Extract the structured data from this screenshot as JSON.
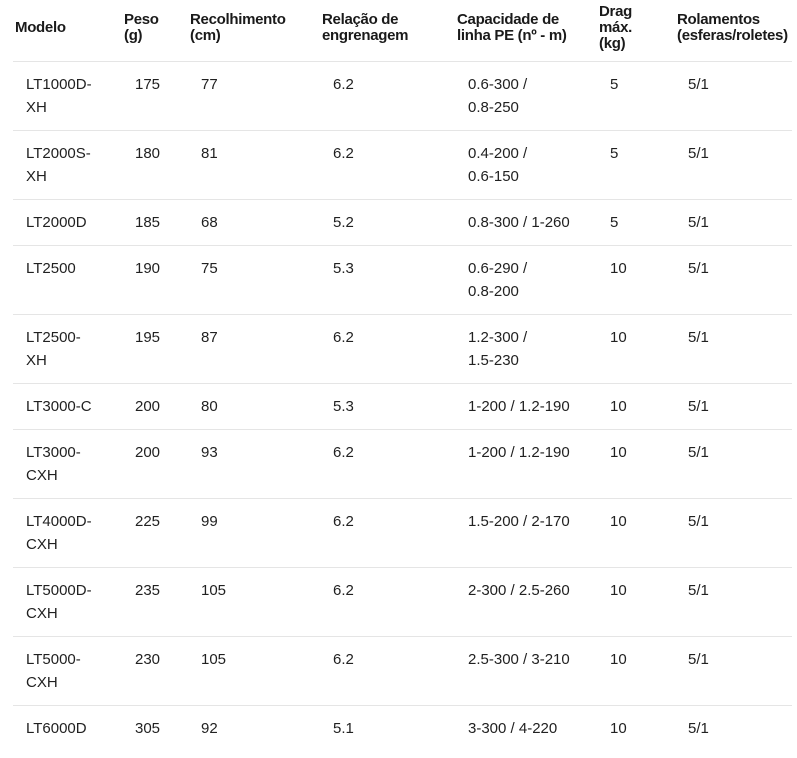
{
  "table": {
    "columns": [
      {
        "id": "modelo",
        "lines": [
          "Modelo"
        ]
      },
      {
        "id": "peso",
        "lines": [
          "Peso",
          "(g)"
        ]
      },
      {
        "id": "recolhimento",
        "lines": [
          "Recolhimento",
          "(cm)"
        ]
      },
      {
        "id": "relacao",
        "lines": [
          "Relação de",
          "engrenagem"
        ]
      },
      {
        "id": "capacidade",
        "lines": [
          "Capacidade de",
          "linha PE (nº - m)"
        ]
      },
      {
        "id": "drag",
        "lines": [
          "Drag",
          "máx.",
          "(kg)"
        ]
      },
      {
        "id": "rolamentos",
        "lines": [
          "Rolamentos",
          "(esferas/roletes)"
        ]
      }
    ],
    "rows": [
      {
        "cells": [
          [
            "LT1000D-",
            "XH"
          ],
          [
            "175"
          ],
          [
            "77"
          ],
          [
            "6.2"
          ],
          [
            "0.6-300 /",
            "0.8-250"
          ],
          [
            "5"
          ],
          [
            "5/1"
          ]
        ]
      },
      {
        "cells": [
          [
            "LT2000S-",
            "XH"
          ],
          [
            "180"
          ],
          [
            "81"
          ],
          [
            "6.2"
          ],
          [
            "0.4-200 /",
            "0.6-150"
          ],
          [
            "5"
          ],
          [
            "5/1"
          ]
        ]
      },
      {
        "cells": [
          [
            "LT2000D"
          ],
          [
            "185"
          ],
          [
            "68"
          ],
          [
            "5.2"
          ],
          [
            "0.8-300 / 1-260"
          ],
          [
            "5"
          ],
          [
            "5/1"
          ]
        ]
      },
      {
        "cells": [
          [
            "LT2500"
          ],
          [
            "190"
          ],
          [
            "75"
          ],
          [
            "5.3"
          ],
          [
            "0.6-290 /",
            "0.8-200"
          ],
          [
            "10"
          ],
          [
            "5/1"
          ]
        ]
      },
      {
        "cells": [
          [
            "LT2500-",
            "XH"
          ],
          [
            "195"
          ],
          [
            "87"
          ],
          [
            "6.2"
          ],
          [
            "1.2-300 /",
            "1.5-230"
          ],
          [
            "10"
          ],
          [
            "5/1"
          ]
        ]
      },
      {
        "cells": [
          [
            "LT3000-C"
          ],
          [
            "200"
          ],
          [
            "80"
          ],
          [
            "5.3"
          ],
          [
            "1-200 / 1.2-190"
          ],
          [
            "10"
          ],
          [
            "5/1"
          ]
        ]
      },
      {
        "cells": [
          [
            "LT3000-",
            "CXH"
          ],
          [
            "200"
          ],
          [
            "93"
          ],
          [
            "6.2"
          ],
          [
            "1-200 / 1.2-190"
          ],
          [
            "10"
          ],
          [
            "5/1"
          ]
        ]
      },
      {
        "cells": [
          [
            "LT4000D-",
            "CXH"
          ],
          [
            "225"
          ],
          [
            "99"
          ],
          [
            "6.2"
          ],
          [
            "1.5-200 / 2-170"
          ],
          [
            "10"
          ],
          [
            "5/1"
          ]
        ]
      },
      {
        "cells": [
          [
            "LT5000D-",
            "CXH"
          ],
          [
            "235"
          ],
          [
            "105"
          ],
          [
            "6.2"
          ],
          [
            "2-300 / 2.5-260"
          ],
          [
            "10"
          ],
          [
            "5/1"
          ]
        ]
      },
      {
        "cells": [
          [
            "LT5000-",
            "CXH"
          ],
          [
            "230"
          ],
          [
            "105"
          ],
          [
            "6.2"
          ],
          [
            "2.5-300 / 3-210"
          ],
          [
            "10"
          ],
          [
            "5/1"
          ]
        ]
      },
      {
        "cells": [
          [
            "LT6000D"
          ],
          [
            "305"
          ],
          [
            "92"
          ],
          [
            "5.1"
          ],
          [
            "3-300 / 4-220"
          ],
          [
            "10"
          ],
          [
            "5/1"
          ]
        ]
      }
    ],
    "colors": {
      "header_text": "#1a1a1a",
      "body_text": "#212121",
      "divider": "#e5e5e5",
      "background": "#ffffff"
    }
  }
}
